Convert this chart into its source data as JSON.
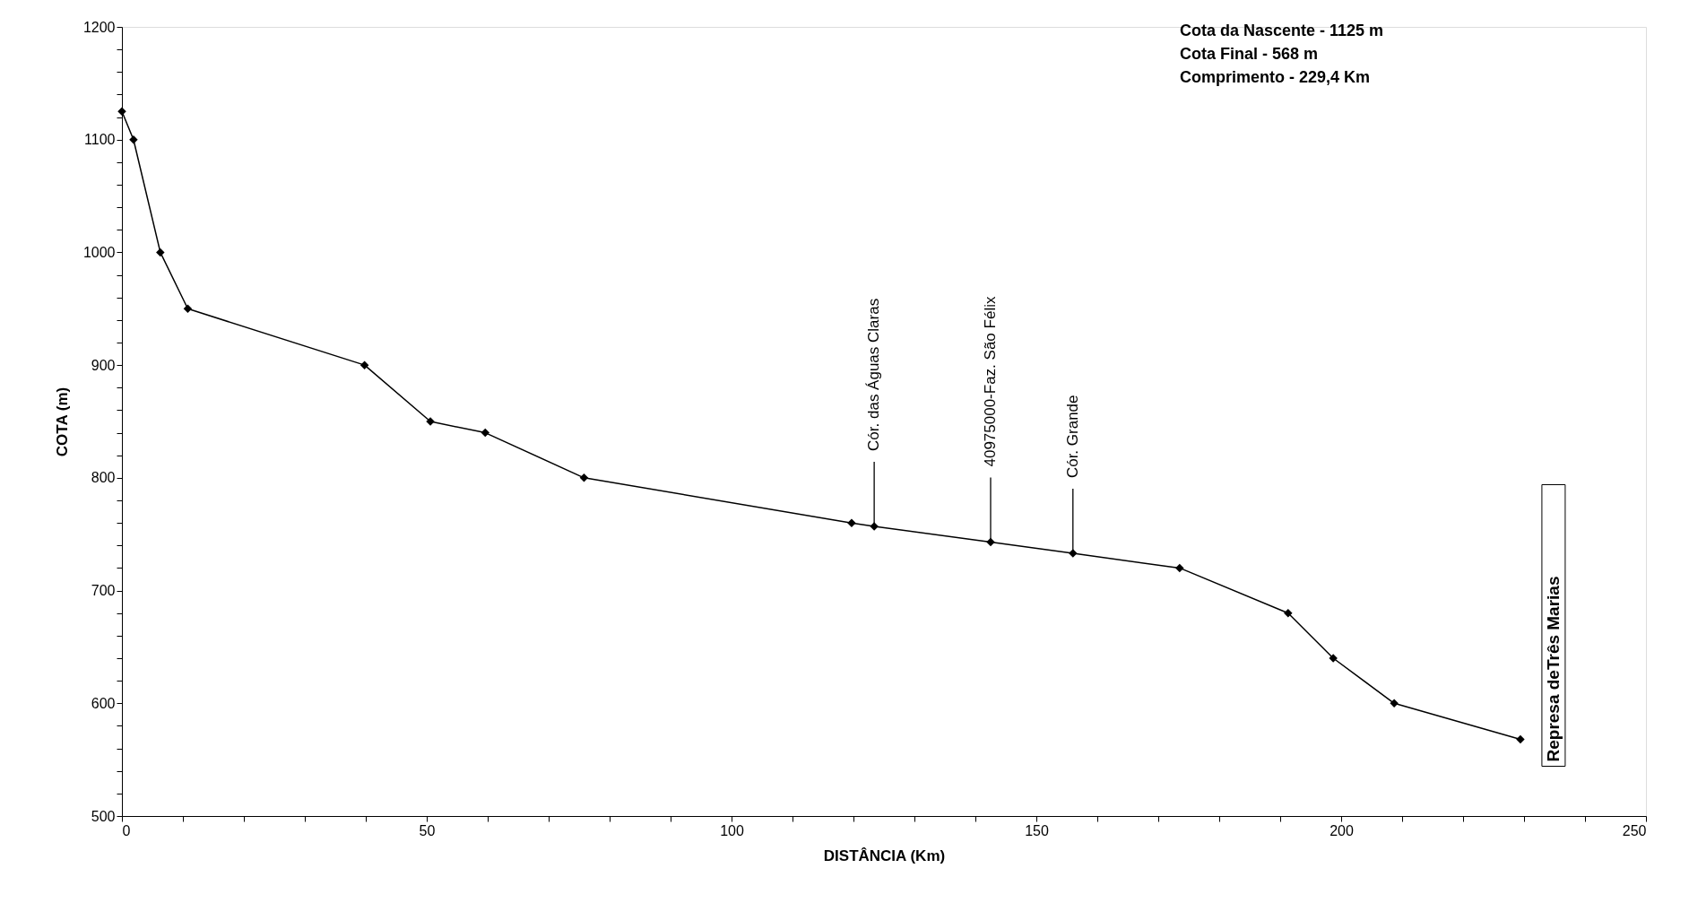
{
  "chart_data": {
    "type": "line",
    "xlabel": "DISTÂNCIA (Km)",
    "ylabel": "COTA (m)",
    "x": [
      0,
      1.9,
      6.3,
      10.8,
      39.8,
      50.6,
      59.6,
      75.8,
      119.7,
      123.4,
      142.5,
      156.0,
      173.5,
      191.3,
      198.7,
      208.7,
      229.4
    ],
    "series": [
      {
        "color": "#000000",
        "values": [
          1125,
          1100,
          1000,
          950,
          900,
          850,
          840,
          800,
          760,
          757,
          743,
          733,
          720,
          680,
          640,
          600,
          568
        ]
      }
    ],
    "xlim": [
      0,
      250
    ],
    "ylim": [
      500,
      1200
    ],
    "xticks": [
      0,
      {
        "value": 10,
        "label": null
      },
      {
        "value": 20,
        "label": null
      },
      {
        "value": 30,
        "label": null
      },
      {
        "value": 40,
        "label": null
      },
      50,
      {
        "value": 60,
        "label": null
      },
      {
        "value": 70,
        "label": null
      },
      {
        "value": 80,
        "label": null
      },
      {
        "value": 90,
        "label": null
      },
      100,
      {
        "value": 110,
        "label": null
      },
      {
        "value": 120,
        "label": null
      },
      {
        "value": 130,
        "label": null
      },
      {
        "value": 140,
        "label": null
      },
      150,
      {
        "value": 160,
        "label": null
      },
      {
        "value": 170,
        "label": null
      },
      {
        "value": 180,
        "label": null
      },
      {
        "value": 190,
        "label": null
      },
      200,
      {
        "value": 210,
        "label": null
      },
      {
        "value": 220,
        "label": null
      },
      {
        "value": 230,
        "label": null
      },
      {
        "value": 240,
        "label": null
      },
      250
    ],
    "yticks": [
      500,
      {
        "value": 520,
        "label": null
      },
      {
        "value": 540,
        "label": null
      },
      {
        "value": 560,
        "label": null
      },
      {
        "value": 580,
        "label": null
      },
      600,
      {
        "value": 620,
        "label": null
      },
      {
        "value": 640,
        "label": null
      },
      {
        "value": 660,
        "label": null
      },
      {
        "value": 680,
        "label": null
      },
      700,
      {
        "value": 720,
        "label": null
      },
      {
        "value": 740,
        "label": null
      },
      {
        "value": 760,
        "label": null
      },
      {
        "value": 780,
        "label": null
      },
      800,
      {
        "value": 820,
        "label": null
      },
      {
        "value": 840,
        "label": null
      },
      {
        "value": 860,
        "label": null
      },
      {
        "value": 880,
        "label": null
      },
      900,
      {
        "value": 920,
        "label": null
      },
      {
        "value": 940,
        "label": null
      },
      {
        "value": 960,
        "label": null
      },
      {
        "value": 980,
        "label": null
      },
      1000,
      {
        "value": 1020,
        "label": null
      },
      {
        "value": 1040,
        "label": null
      },
      {
        "value": 1060,
        "label": null
      },
      {
        "value": 1080,
        "label": null
      },
      1100,
      {
        "value": 1120,
        "label": null
      },
      {
        "value": 1140,
        "label": null
      },
      {
        "value": 1160,
        "label": null
      },
      {
        "value": 1180,
        "label": null
      },
      1200
    ],
    "grid": false,
    "marker": "diamond",
    "line_style": "solid",
    "annotations": [
      "Cota da Nascente - 1125 m",
      "Cota Final - 568 m",
      "Comprimento - 229,4 Km",
      {
        "text": "Cór. das Águas Claras",
        "x": 123.4,
        "y": 757
      },
      {
        "text": "40975000-Faz. São Félix",
        "x": 142.5,
        "y": 743
      },
      {
        "text": "Cór. Grande",
        "x": 156.0,
        "y": 733
      },
      {
        "text": "Represa deTrês Marias",
        "x": 229.4,
        "y": 568
      }
    ]
  }
}
